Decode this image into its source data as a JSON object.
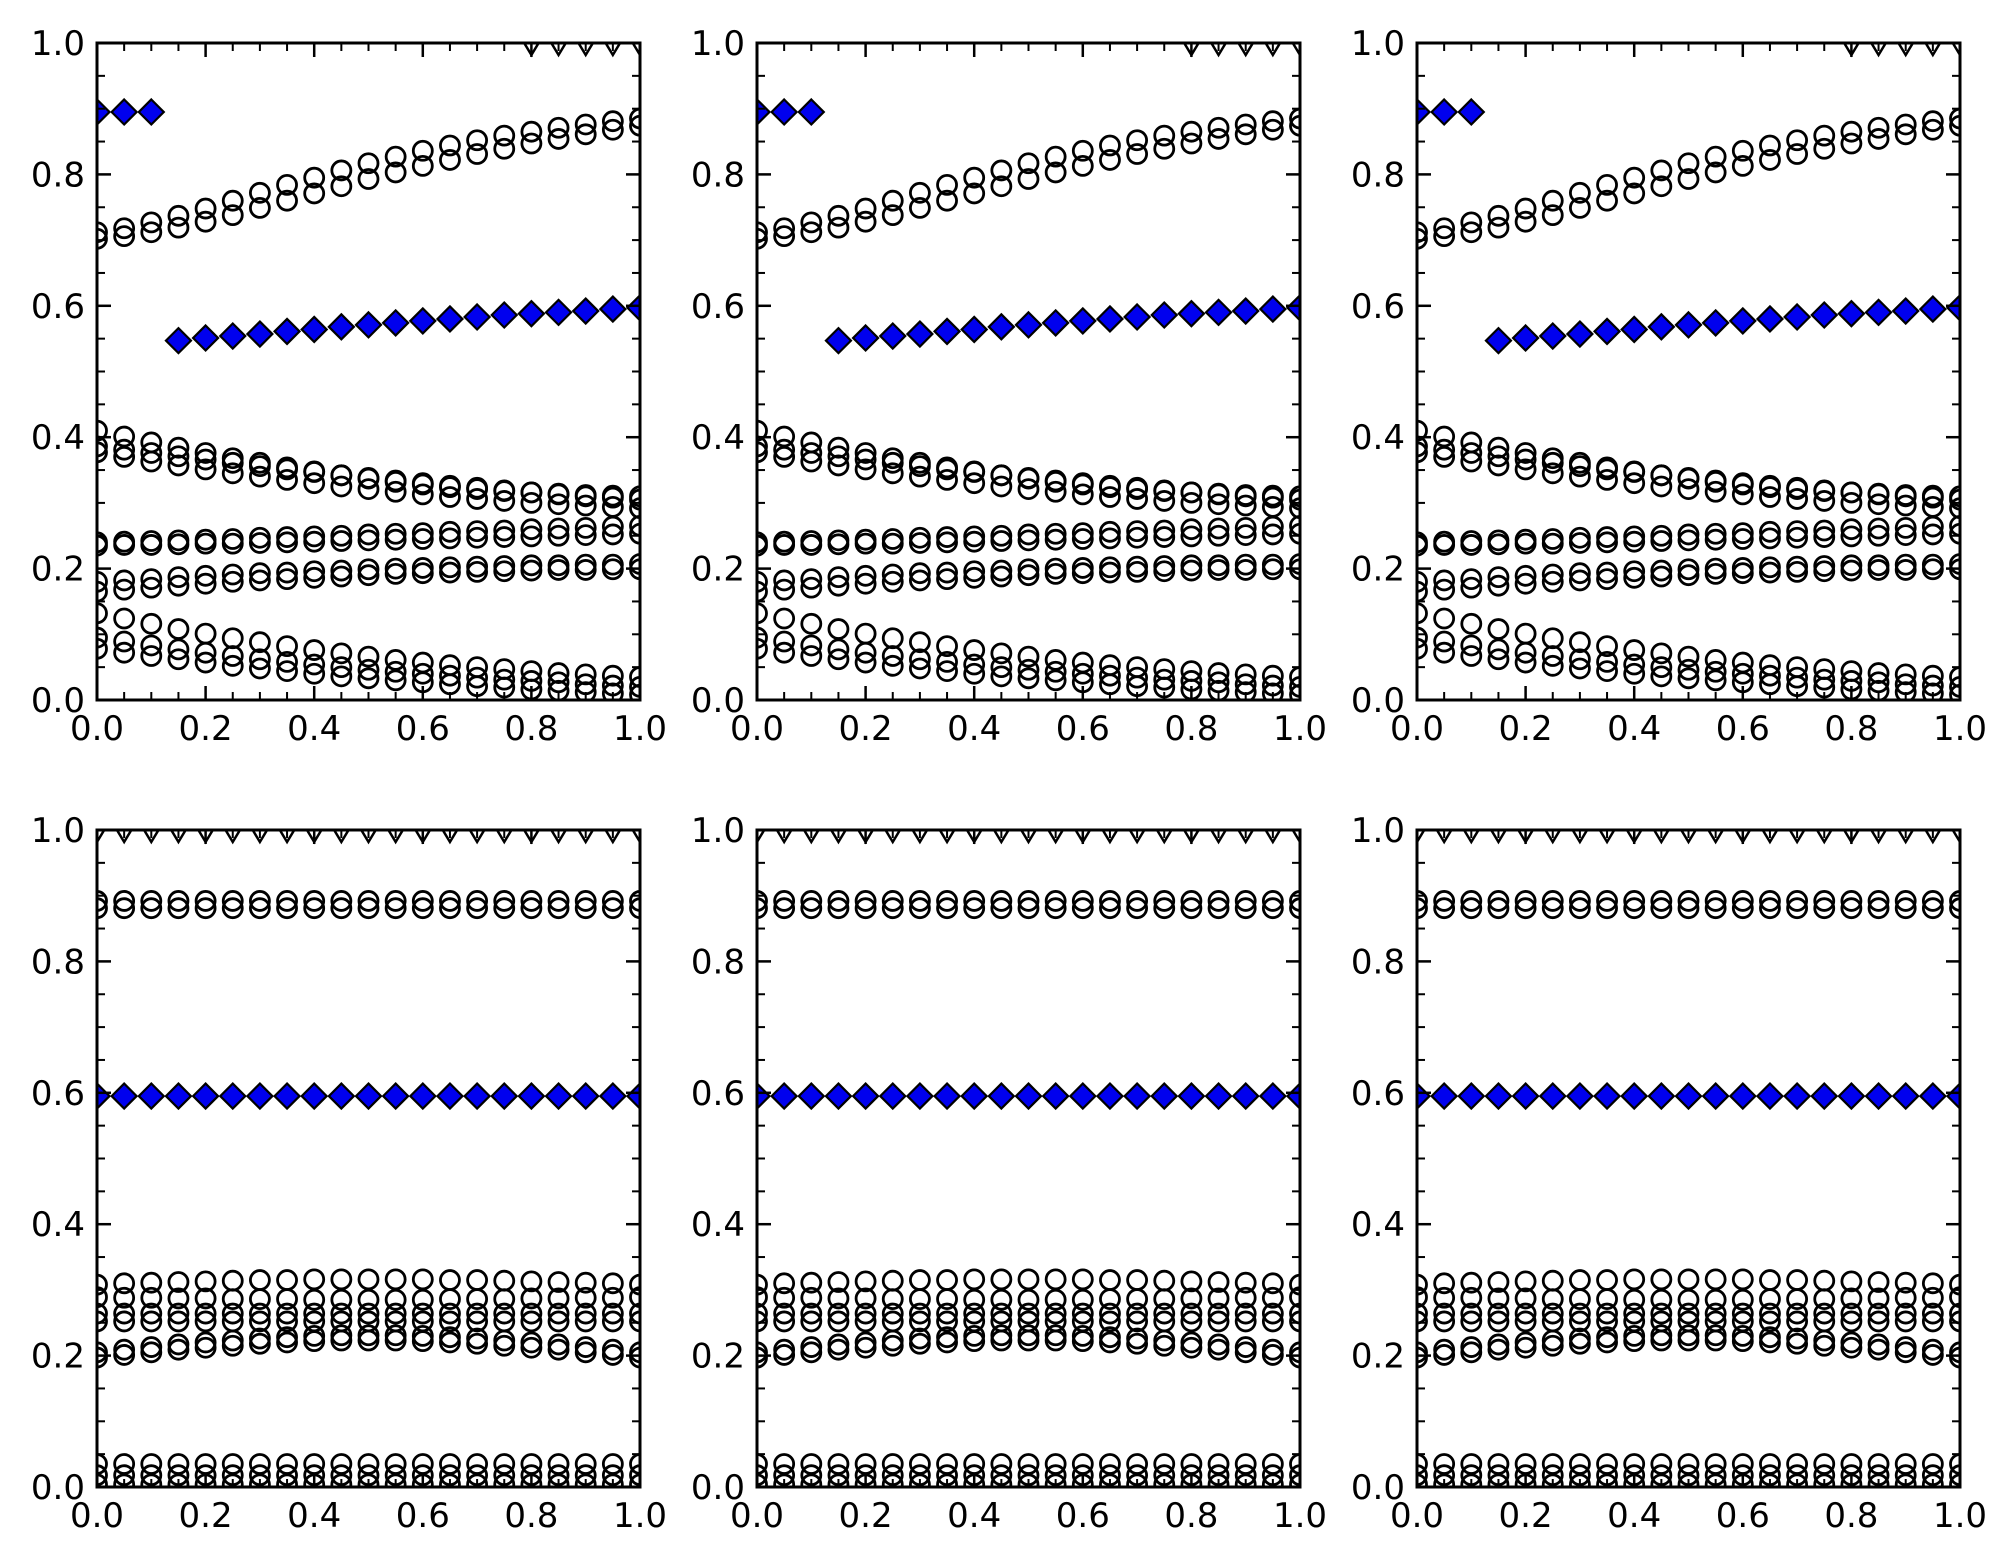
{
  "figure": {
    "background": "#ffffff",
    "axis_color": "#000000",
    "marker_edge_color": "#000000",
    "diamond_fill": "#0000EE",
    "circle_fill": "none",
    "triangle_fill": "#ffffff"
  },
  "axes_defaults": {
    "xlim": [
      0.0,
      1.0
    ],
    "ylim": [
      0.0,
      1.0
    ],
    "x_major_ticks": [
      0.0,
      0.2,
      0.4,
      0.6,
      0.8,
      1.0
    ],
    "x_tick_labels": [
      "0.0",
      "0.2",
      "0.4",
      "0.6",
      "0.8",
      "1.0"
    ],
    "y_major_ticks": [
      0.0,
      0.2,
      0.4,
      0.6,
      0.8,
      1.0
    ],
    "y_tick_labels": [
      "0.0",
      "0.2",
      "0.4",
      "0.6",
      "0.8",
      "1.0"
    ],
    "minor_tick_step": 0.05,
    "grid": false,
    "legend": null
  },
  "default_x": [
    0.0,
    0.05,
    0.1,
    0.15,
    0.2,
    0.25,
    0.3,
    0.35,
    0.4,
    0.45,
    0.5,
    0.55,
    0.6,
    0.65,
    0.7,
    0.75,
    0.8,
    0.85,
    0.9,
    0.95,
    1.0
  ],
  "chart_data": [
    {
      "id": "r0c0",
      "type": "scatter",
      "row": 0,
      "col": 0,
      "title": "",
      "xlabel": "",
      "ylabel": "",
      "series_set": "top"
    },
    {
      "id": "r0c1",
      "type": "scatter",
      "row": 0,
      "col": 1,
      "title": "",
      "xlabel": "",
      "ylabel": "",
      "series_set": "top"
    },
    {
      "id": "r0c2",
      "type": "scatter",
      "row": 0,
      "col": 2,
      "title": "",
      "xlabel": "",
      "ylabel": "",
      "series_set": "top"
    },
    {
      "id": "r1c0",
      "type": "scatter",
      "row": 1,
      "col": 0,
      "title": "",
      "xlabel": "",
      "ylabel": "",
      "series_set": "bottom"
    },
    {
      "id": "r1c1",
      "type": "scatter",
      "row": 1,
      "col": 1,
      "title": "",
      "xlabel": "",
      "ylabel": "",
      "series_set": "bottom"
    },
    {
      "id": "r1c2",
      "type": "scatter",
      "row": 1,
      "col": 2,
      "title": "",
      "xlabel": "",
      "ylabel": "",
      "series_set": "bottom"
    }
  ],
  "series_sets": {
    "top": [
      {
        "name": "circle-upper-branch-1",
        "marker": "circle",
        "y": [
          0.712,
          0.718,
          0.727,
          0.737,
          0.748,
          0.76,
          0.772,
          0.784,
          0.795,
          0.806,
          0.817,
          0.827,
          0.836,
          0.844,
          0.852,
          0.859,
          0.865,
          0.871,
          0.876,
          0.881,
          0.885
        ]
      },
      {
        "name": "circle-upper-branch-2",
        "marker": "circle",
        "y": [
          0.702,
          0.706,
          0.712,
          0.719,
          0.728,
          0.738,
          0.749,
          0.76,
          0.771,
          0.782,
          0.793,
          0.803,
          0.813,
          0.822,
          0.831,
          0.839,
          0.847,
          0.854,
          0.861,
          0.868,
          0.874
        ]
      },
      {
        "name": "circle-mid-branch-1",
        "marker": "circle",
        "y": [
          0.41,
          0.401,
          0.392,
          0.384,
          0.376,
          0.368,
          0.361,
          0.354,
          0.348,
          0.342,
          0.337,
          0.332,
          0.328,
          0.324,
          0.321,
          0.318,
          0.316,
          0.314,
          0.312,
          0.311,
          0.31
        ]
      },
      {
        "name": "circle-mid-branch-2",
        "marker": "circle",
        "y": [
          0.386,
          0.381,
          0.376,
          0.371,
          0.366,
          0.361,
          0.356,
          0.351,
          0.347,
          0.342,
          0.338,
          0.334,
          0.33,
          0.326,
          0.323,
          0.319,
          0.316,
          0.313,
          0.31,
          0.308,
          0.305
        ]
      },
      {
        "name": "circle-mid-branch-3",
        "marker": "circle",
        "y": [
          0.377,
          0.37,
          0.363,
          0.357,
          0.351,
          0.345,
          0.34,
          0.335,
          0.33,
          0.325,
          0.321,
          0.317,
          0.313,
          0.309,
          0.306,
          0.303,
          0.3,
          0.298,
          0.296,
          0.294,
          0.292
        ]
      },
      {
        "name": "circle-flat-branch-1",
        "marker": "circle",
        "y": [
          0.24,
          0.241,
          0.242,
          0.243,
          0.244,
          0.245,
          0.247,
          0.248,
          0.249,
          0.25,
          0.252,
          0.253,
          0.254,
          0.256,
          0.257,
          0.258,
          0.26,
          0.261,
          0.262,
          0.264,
          0.265
        ]
      },
      {
        "name": "circle-flat-branch-2",
        "marker": "circle",
        "y": [
          0.235,
          0.236,
          0.236,
          0.237,
          0.238,
          0.238,
          0.239,
          0.24,
          0.241,
          0.242,
          0.243,
          0.244,
          0.245,
          0.246,
          0.247,
          0.248,
          0.249,
          0.25,
          0.251,
          0.252,
          0.253
        ]
      },
      {
        "name": "circle-rising-branch-1",
        "marker": "circle",
        "y": [
          0.18,
          0.182,
          0.184,
          0.187,
          0.189,
          0.191,
          0.193,
          0.194,
          0.196,
          0.197,
          0.199,
          0.2,
          0.201,
          0.202,
          0.203,
          0.204,
          0.205,
          0.205,
          0.206,
          0.206,
          0.207
        ]
      },
      {
        "name": "circle-rising-branch-2",
        "marker": "circle",
        "y": [
          0.165,
          0.168,
          0.171,
          0.174,
          0.177,
          0.18,
          0.182,
          0.184,
          0.186,
          0.188,
          0.19,
          0.192,
          0.193,
          0.194,
          0.195,
          0.196,
          0.197,
          0.198,
          0.198,
          0.199,
          0.199
        ]
      },
      {
        "name": "circle-lower-branch-1",
        "marker": "circle",
        "y": [
          0.132,
          0.124,
          0.116,
          0.108,
          0.101,
          0.094,
          0.088,
          0.082,
          0.076,
          0.071,
          0.066,
          0.061,
          0.057,
          0.053,
          0.05,
          0.047,
          0.044,
          0.041,
          0.039,
          0.037,
          0.035
        ]
      },
      {
        "name": "circle-lower-branch-2",
        "marker": "circle",
        "y": [
          0.095,
          0.089,
          0.083,
          0.077,
          0.072,
          0.067,
          0.062,
          0.058,
          0.054,
          0.05,
          0.046,
          0.043,
          0.04,
          0.037,
          0.034,
          0.031,
          0.029,
          0.027,
          0.024,
          0.022,
          0.02
        ]
      },
      {
        "name": "circle-lower-branch-3",
        "marker": "circle",
        "y": [
          0.078,
          0.072,
          0.067,
          0.062,
          0.057,
          0.052,
          0.048,
          0.044,
          0.04,
          0.036,
          0.033,
          0.03,
          0.027,
          0.024,
          0.021,
          0.019,
          0.016,
          0.014,
          0.012,
          0.01,
          0.008
        ]
      },
      {
        "name": "diamond-isolated-points",
        "marker": "diamond",
        "x": [
          0.0,
          0.05,
          0.1
        ],
        "y": [
          0.895,
          0.895,
          0.895
        ]
      },
      {
        "name": "diamond-branch",
        "marker": "diamond",
        "x": [
          0.15,
          0.2,
          0.25,
          0.3,
          0.35,
          0.4,
          0.45,
          0.5,
          0.55,
          0.6,
          0.65,
          0.7,
          0.75,
          0.8,
          0.85,
          0.9,
          0.95,
          1.0
        ],
        "y": [
          0.547,
          0.551,
          0.554,
          0.557,
          0.561,
          0.564,
          0.568,
          0.571,
          0.574,
          0.577,
          0.58,
          0.583,
          0.586,
          0.588,
          0.59,
          0.592,
          0.595,
          0.597
        ]
      },
      {
        "name": "clipped-top-markers",
        "marker": "triangle_down",
        "x": [
          0.8,
          0.85,
          0.9,
          0.95,
          1.0
        ],
        "y": [
          1.0,
          1.0,
          1.0,
          1.0,
          1.0
        ]
      }
    ],
    "bottom": [
      {
        "name": "circle-high-band-1",
        "marker": "circle",
        "y": [
          0.892,
          0.892,
          0.892,
          0.892,
          0.892,
          0.892,
          0.892,
          0.892,
          0.892,
          0.892,
          0.892,
          0.892,
          0.892,
          0.892,
          0.892,
          0.892,
          0.892,
          0.892,
          0.892,
          0.892,
          0.892
        ]
      },
      {
        "name": "circle-high-band-2",
        "marker": "circle",
        "y": [
          0.881,
          0.881,
          0.881,
          0.881,
          0.881,
          0.881,
          0.881,
          0.881,
          0.881,
          0.881,
          0.881,
          0.881,
          0.881,
          0.881,
          0.881,
          0.881,
          0.881,
          0.881,
          0.881,
          0.881,
          0.881
        ]
      },
      {
        "name": "circle-cluster-band-1",
        "marker": "circle",
        "y": [
          0.308,
          0.31,
          0.311,
          0.312,
          0.313,
          0.314,
          0.315,
          0.315,
          0.316,
          0.316,
          0.316,
          0.316,
          0.316,
          0.315,
          0.315,
          0.314,
          0.313,
          0.312,
          0.311,
          0.31,
          0.308
        ]
      },
      {
        "name": "circle-cluster-band-2",
        "marker": "circle",
        "y": [
          0.289,
          0.288,
          0.288,
          0.287,
          0.287,
          0.286,
          0.286,
          0.286,
          0.285,
          0.285,
          0.285,
          0.285,
          0.285,
          0.286,
          0.286,
          0.286,
          0.287,
          0.287,
          0.288,
          0.288,
          0.289
        ]
      },
      {
        "name": "circle-cluster-band-3",
        "marker": "circle",
        "y": [
          0.264,
          0.264,
          0.264,
          0.264,
          0.264,
          0.264,
          0.264,
          0.264,
          0.264,
          0.264,
          0.264,
          0.264,
          0.264,
          0.264,
          0.264,
          0.264,
          0.264,
          0.264,
          0.264,
          0.264,
          0.264
        ]
      },
      {
        "name": "circle-cluster-band-4",
        "marker": "circle",
        "y": [
          0.252,
          0.252,
          0.252,
          0.252,
          0.252,
          0.252,
          0.252,
          0.252,
          0.252,
          0.252,
          0.252,
          0.252,
          0.252,
          0.252,
          0.252,
          0.252,
          0.252,
          0.252,
          0.252,
          0.252,
          0.252
        ]
      },
      {
        "name": "circle-wavy-band-1",
        "marker": "circle",
        "y": [
          0.205,
          0.209,
          0.213,
          0.217,
          0.22,
          0.223,
          0.226,
          0.228,
          0.23,
          0.231,
          0.231,
          0.231,
          0.23,
          0.228,
          0.226,
          0.223,
          0.22,
          0.217,
          0.213,
          0.209,
          0.205
        ]
      },
      {
        "name": "circle-wavy-band-2",
        "marker": "circle",
        "y": [
          0.197,
          0.201,
          0.205,
          0.209,
          0.212,
          0.215,
          0.218,
          0.22,
          0.222,
          0.223,
          0.223,
          0.223,
          0.222,
          0.22,
          0.218,
          0.215,
          0.212,
          0.209,
          0.205,
          0.201,
          0.197
        ]
      },
      {
        "name": "circle-low-band-1",
        "marker": "circle",
        "y": [
          0.035,
          0.035,
          0.035,
          0.035,
          0.035,
          0.035,
          0.035,
          0.035,
          0.035,
          0.035,
          0.035,
          0.035,
          0.035,
          0.035,
          0.035,
          0.035,
          0.035,
          0.035,
          0.035,
          0.035,
          0.035
        ]
      },
      {
        "name": "circle-low-band-2",
        "marker": "circle",
        "y": [
          0.018,
          0.018,
          0.018,
          0.018,
          0.018,
          0.018,
          0.018,
          0.018,
          0.018,
          0.018,
          0.018,
          0.018,
          0.018,
          0.018,
          0.018,
          0.018,
          0.018,
          0.018,
          0.018,
          0.018,
          0.018
        ]
      },
      {
        "name": "circle-low-band-3",
        "marker": "circle",
        "y": [
          0.004,
          0.004,
          0.004,
          0.004,
          0.004,
          0.004,
          0.004,
          0.004,
          0.004,
          0.004,
          0.004,
          0.004,
          0.004,
          0.004,
          0.004,
          0.004,
          0.004,
          0.004,
          0.004,
          0.004,
          0.004
        ]
      },
      {
        "name": "diamond-flat-band",
        "marker": "diamond",
        "y": [
          0.595,
          0.595,
          0.595,
          0.595,
          0.595,
          0.595,
          0.595,
          0.595,
          0.595,
          0.595,
          0.595,
          0.595,
          0.595,
          0.595,
          0.595,
          0.595,
          0.595,
          0.595,
          0.595,
          0.595,
          0.595
        ]
      },
      {
        "name": "clipped-top-markers",
        "marker": "triangle_down",
        "y": [
          1.0,
          1.0,
          1.0,
          1.0,
          1.0,
          1.0,
          1.0,
          1.0,
          1.0,
          1.0,
          1.0,
          1.0,
          1.0,
          1.0,
          1.0,
          1.0,
          1.0,
          1.0,
          1.0,
          1.0,
          1.0
        ]
      }
    ]
  }
}
